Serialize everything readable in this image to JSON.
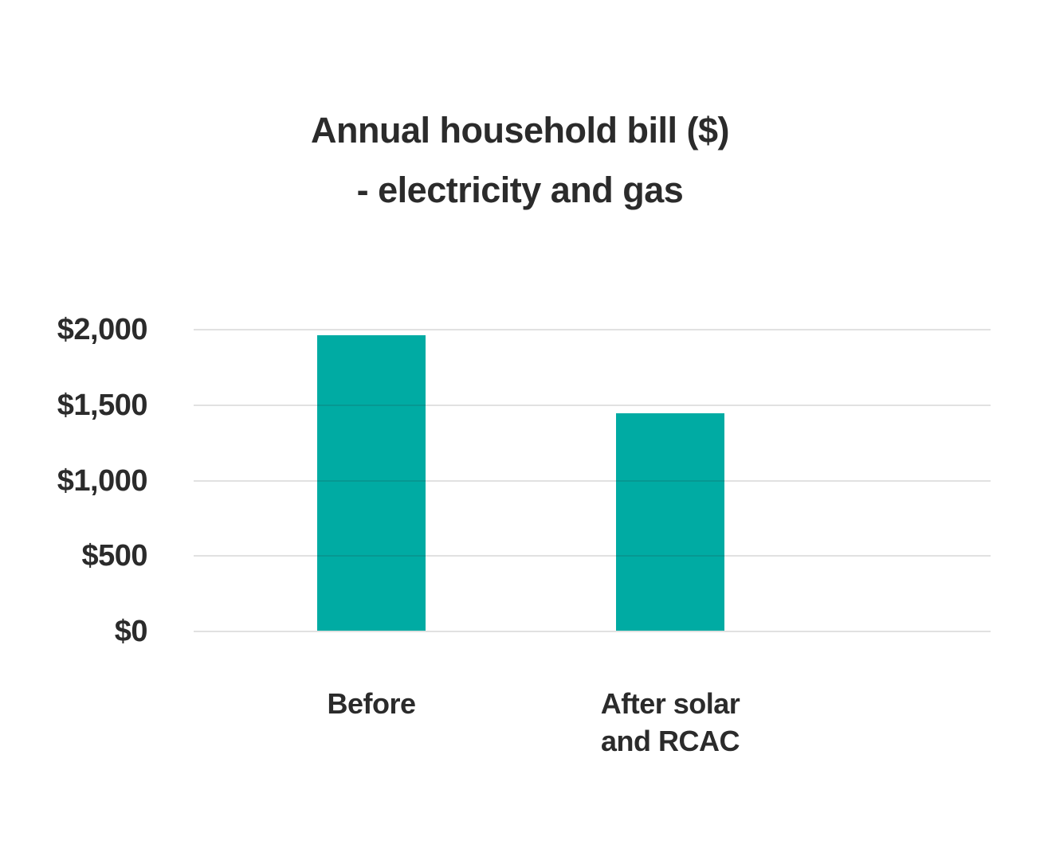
{
  "title": {
    "line1": "Annual household bill ($)",
    "line2": "- electricity and gas"
  },
  "chart_data": {
    "type": "bar",
    "title": "Annual household bill ($) - electricity and gas",
    "categories": [
      "Before",
      "After solar\nand RCAC"
    ],
    "values": [
      1960,
      1440
    ],
    "xlabel": "",
    "ylabel": "",
    "ylim": [
      0,
      2000
    ],
    "ytick_labels": [
      "$2,000",
      "$1,500",
      "$1,000",
      "$500",
      "$0"
    ],
    "ytick_values": [
      2000,
      1500,
      1000,
      500,
      0
    ],
    "grid": "horizontal",
    "legend": "none",
    "bar_color": "#00aba3",
    "text_color": "#2b2b2b",
    "gridline_color": "#e0e0e0",
    "background_color": "#ffffff"
  }
}
